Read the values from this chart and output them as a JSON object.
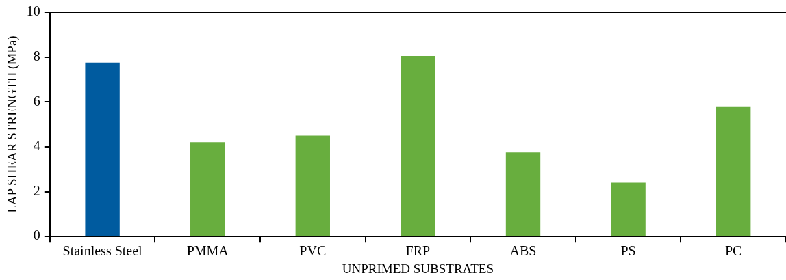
{
  "chart_data": {
    "type": "bar",
    "xlabel": "UNPRIMED SUBSTRATES",
    "ylabel": "LAP SHEAR STRENGTH (MPa)",
    "categories": [
      "Stainless Steel",
      "PMMA",
      "PVC",
      "FRP",
      "ABS",
      "PS",
      "PC"
    ],
    "values": [
      7.75,
      4.2,
      4.5,
      8.05,
      3.75,
      2.4,
      5.8
    ],
    "colors": [
      "#005b9f",
      "#68ae3e",
      "#68ae3e",
      "#68ae3e",
      "#68ae3e",
      "#68ae3e",
      "#68ae3e"
    ],
    "ylim": [
      0,
      10
    ],
    "yticks": [
      0,
      2,
      4,
      6,
      8,
      10
    ],
    "grid": false,
    "legend": false
  }
}
